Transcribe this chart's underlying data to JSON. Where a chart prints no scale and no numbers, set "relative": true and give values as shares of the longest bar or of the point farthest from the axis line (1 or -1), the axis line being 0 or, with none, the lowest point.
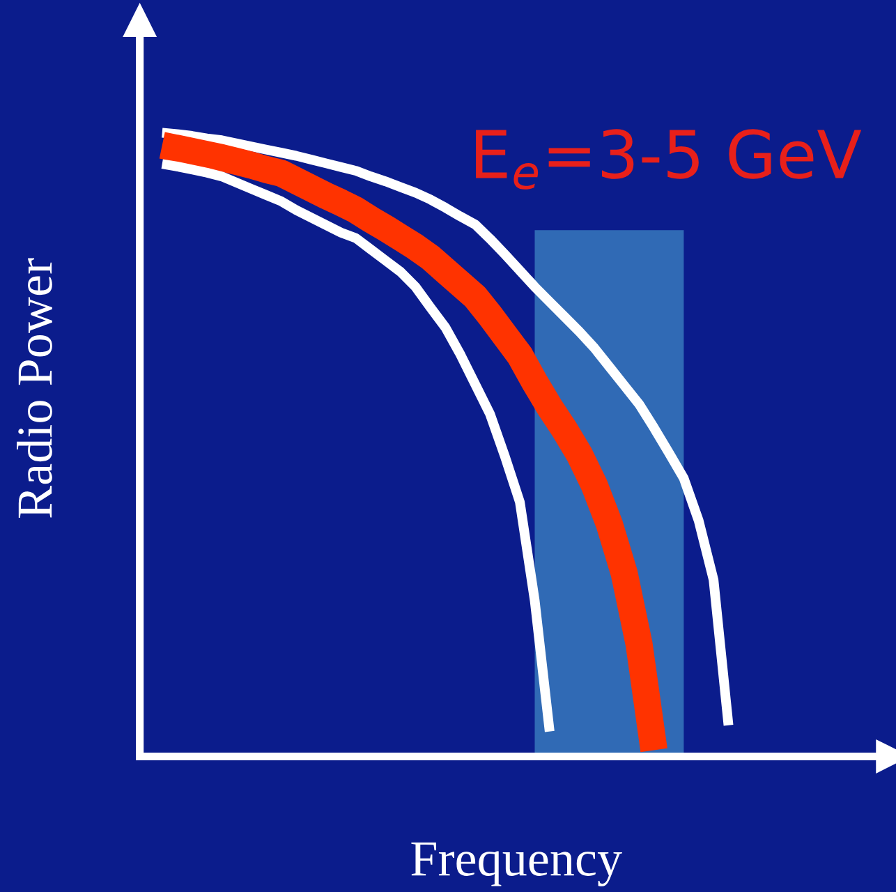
{
  "chart_data": {
    "type": "line",
    "relative": true,
    "xlabel": "Frequency",
    "ylabel": "Radio Power",
    "annotations": [
      "E$_{e}$=3-5 GeV"
    ],
    "categories": [
      null,
      null,
      null,
      null,
      null,
      null,
      null,
      null,
      null,
      null,
      null,
      null,
      null,
      null,
      null,
      null,
      null,
      null,
      null,
      null,
      null,
      null,
      null,
      null,
      null,
      null,
      null,
      null,
      null,
      null,
      null,
      null,
      null,
      null,
      null,
      null,
      null,
      null,
      null,
      null,
      null,
      null,
      null,
      null,
      null,
      null,
      null,
      null,
      null,
      null,
      null
    ],
    "series": [
      {
        "color": "#ffffff",
        "values": [
          null,
          1.0,
          0.998,
          0.995,
          0.991,
          0.988,
          0.983,
          0.978,
          0.973,
          0.968,
          0.963,
          0.957,
          0.951,
          0.945,
          0.939,
          0.93,
          0.922,
          0.913,
          0.904,
          0.893,
          0.88,
          0.866,
          0.853,
          0.83,
          0.805,
          0.779,
          0.753,
          0.729,
          0.705,
          0.681,
          0.655,
          0.625,
          0.595,
          0.565,
          0.527,
          0.487,
          0.446,
          0.378,
          0.283,
          0.05,
          null,
          null,
          null,
          null,
          null,
          null,
          null,
          null,
          null,
          null,
          null
        ]
      },
      {
        "color": "#ff3300",
        "values": [
          null,
          0.98,
          0.975,
          0.97,
          0.965,
          0.96,
          0.954,
          0.948,
          0.941,
          0.935,
          0.923,
          0.911,
          0.899,
          0.888,
          0.876,
          0.861,
          0.847,
          0.832,
          0.817,
          0.8,
          0.779,
          0.758,
          0.737,
          0.707,
          0.675,
          0.643,
          0.6,
          0.56,
          0.524,
          0.484,
          0.435,
          0.373,
          0.294,
          0.18,
          0.01,
          null,
          null,
          null,
          null,
          null,
          null,
          null,
          null,
          null,
          null,
          null,
          null,
          null,
          null,
          null,
          null
        ]
      },
      {
        "color": "#ffffff",
        "values": [
          null,
          0.95,
          0.946,
          0.941,
          0.936,
          0.93,
          0.92,
          0.91,
          0.9,
          0.89,
          0.876,
          0.864,
          0.852,
          0.84,
          0.831,
          0.813,
          0.795,
          0.777,
          0.753,
          0.72,
          0.688,
          0.645,
          0.597,
          0.549,
          0.481,
          0.408,
          0.25,
          0.04,
          null,
          null,
          null,
          null,
          null,
          null,
          null,
          null,
          null,
          null,
          null,
          null,
          null,
          null,
          null,
          null,
          null,
          null,
          null,
          null,
          null,
          null,
          null
        ]
      },
      {
        "type": "area",
        "color": "#4a9fd0",
        "values": [
          null,
          null,
          null,
          null,
          null,
          null,
          null,
          null,
          null,
          null,
          null,
          null,
          null,
          null,
          null,
          null,
          null,
          null,
          null,
          null,
          null,
          null,
          null,
          null,
          null,
          null,
          0.844,
          0.844,
          0.844,
          0.844,
          0.844,
          0.844,
          0.844,
          0.844,
          0.844,
          0.844,
          0.844,
          null,
          null,
          null,
          null,
          null,
          null,
          null,
          null,
          null,
          null,
          null,
          null,
          null,
          null
        ]
      }
    ],
    "grid": false,
    "legend": false,
    "marker": "none",
    "line_style": "solid"
  }
}
